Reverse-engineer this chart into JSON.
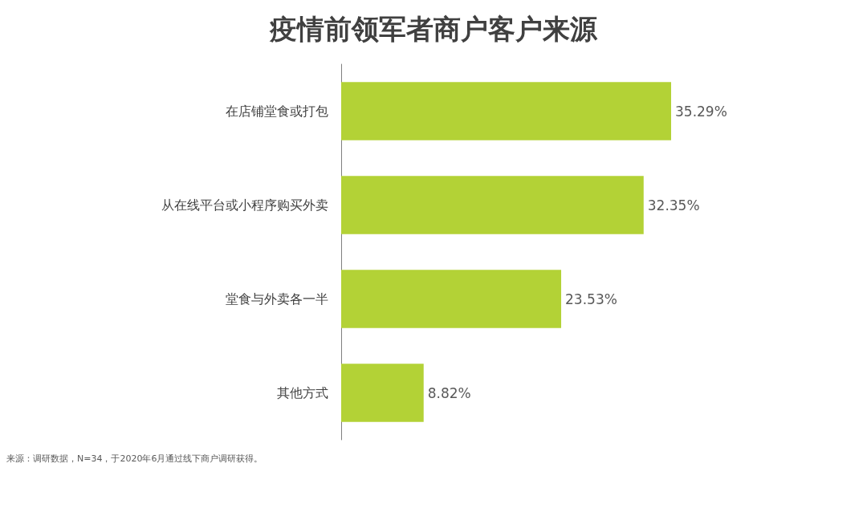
{
  "chart_data": {
    "type": "bar",
    "orientation": "horizontal",
    "title": "疫情前领军者商户客户来源",
    "categories": [
      "在店铺堂食或打包",
      "从在线平台或小程序购买外卖",
      "堂食与外卖各一半",
      "其他方式"
    ],
    "values": [
      35.29,
      32.35,
      23.53,
      8.82
    ],
    "value_labels": [
      "35.29%",
      "32.35%",
      "23.53%",
      "8.82%"
    ],
    "color": "#b3d236",
    "tick_labels": "y",
    "annotations": [
      "来源：调研数据，N=34，于2020年6月通过线下商户调研获得。"
    ]
  }
}
